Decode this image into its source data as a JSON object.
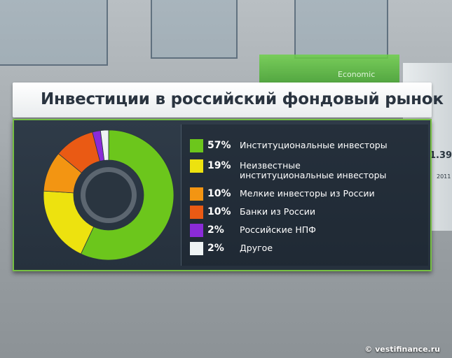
{
  "title": "Инвестиции в российский фондовый рынок",
  "background": {
    "label": "Economic",
    "value": "1.39",
    "year": "2011"
  },
  "credit": "© vestifinance.ru",
  "chart_data": {
    "type": "pie",
    "donut": true,
    "title": "Инвестиции в российский фондовый рынок",
    "legend_position": "right",
    "slices": [
      {
        "label": "Институциональные инвесторы",
        "value": 57,
        "display": "57%",
        "color": "#6cc61c"
      },
      {
        "label": "Неизвестные институциональные инвесторы",
        "value": 19,
        "display": "19%",
        "color": "#ede20f"
      },
      {
        "label": "Мелкие инвесторы из России",
        "value": 10,
        "display": "10%",
        "color": "#f39512"
      },
      {
        "label": "Банки из России",
        "value": 10,
        "display": "10%",
        "color": "#ea5a14"
      },
      {
        "label": "Российские НПФ",
        "value": 2,
        "display": "2%",
        "color": "#8a2bd8"
      },
      {
        "label": "Другое",
        "value": 2,
        "display": "2%",
        "color": "#eef3f4"
      }
    ]
  }
}
